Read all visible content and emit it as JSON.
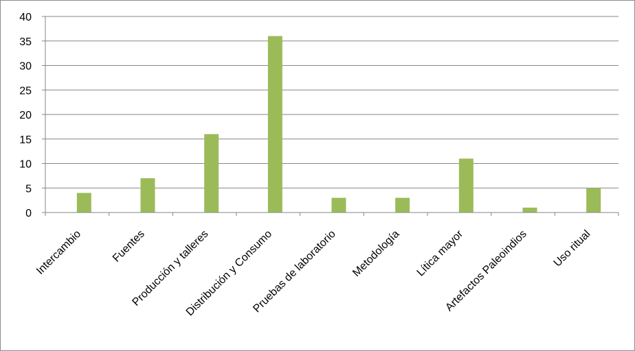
{
  "chart_data": {
    "type": "bar",
    "categories": [
      "Intercambio",
      "Fuentes",
      "Producción y talleres",
      "Distribución y Consumo",
      "Pruebas de laboratorio",
      "Metodología",
      "Lítica mayor",
      "Artefactos Paleoindios",
      "Uso ritual"
    ],
    "series": [
      {
        "values": [
          4,
          7,
          16,
          36,
          3,
          3,
          11,
          1,
          5
        ]
      }
    ],
    "ylim": [
      0,
      40
    ],
    "yticks": [
      "0",
      "5",
      "10",
      "15",
      "20",
      "25",
      "30",
      "35",
      "40"
    ],
    "grid": true,
    "legend": "none",
    "bar_color": "#9bbb59",
    "grid_color": "#868686"
  }
}
